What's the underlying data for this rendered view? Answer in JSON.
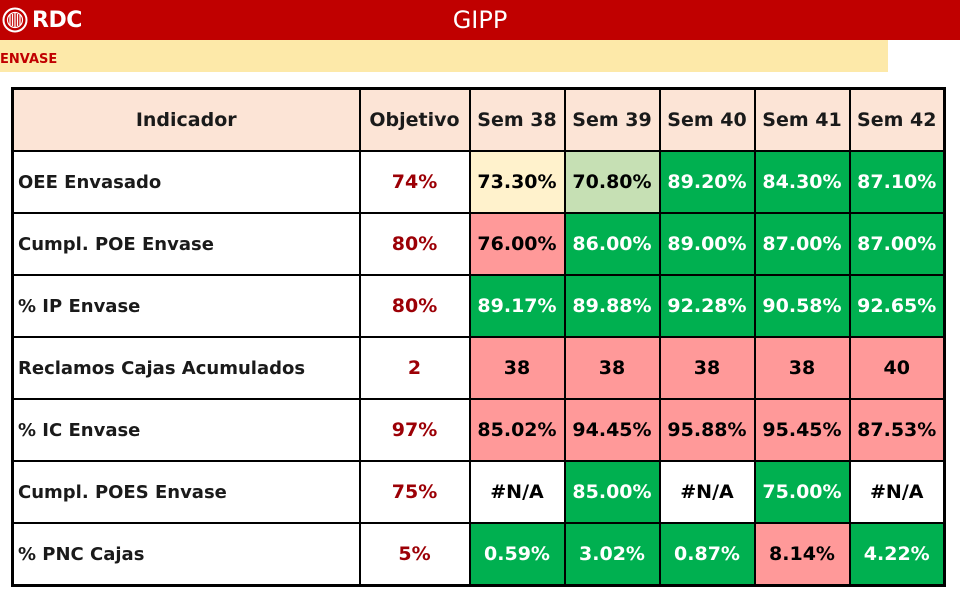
{
  "header": {
    "logo_text": "RDC",
    "title": "GIPP"
  },
  "section": {
    "label": "ENVASE"
  },
  "colors": {
    "header_red": "#c00000",
    "section_yellow": "#fde9a9",
    "header_row": "#fce4d6",
    "green": "#00b050",
    "light_green": "#c6e0b4",
    "cream": "#fff2cc",
    "red": "#ff9999",
    "objective_text": "#9c0006"
  },
  "table": {
    "columns": [
      "Indicador",
      "Objetivo",
      "Sem 38",
      "Sem 39",
      "Sem 40",
      "Sem 41",
      "Sem 42"
    ],
    "rows": [
      {
        "indicator": "OEE Envasado",
        "objective": "74%",
        "values": [
          "73.30%",
          "70.80%",
          "89.20%",
          "84.30%",
          "87.10%"
        ],
        "status": [
          "cream",
          "lgreen",
          "green",
          "green",
          "green"
        ]
      },
      {
        "indicator": "Cumpl. POE Envase",
        "objective": "80%",
        "values": [
          "76.00%",
          "86.00%",
          "89.00%",
          "87.00%",
          "87.00%"
        ],
        "status": [
          "red",
          "green",
          "green",
          "green",
          "green"
        ]
      },
      {
        "indicator": "% IP Envase",
        "objective": "80%",
        "values": [
          "89.17%",
          "89.88%",
          "92.28%",
          "90.58%",
          "92.65%"
        ],
        "status": [
          "green",
          "green",
          "green",
          "green",
          "green"
        ]
      },
      {
        "indicator": "Reclamos Cajas Acumulados",
        "objective": "2",
        "values": [
          "38",
          "38",
          "38",
          "38",
          "40"
        ],
        "status": [
          "red",
          "red",
          "red",
          "red",
          "red"
        ]
      },
      {
        "indicator": "% IC Envase",
        "objective": "97%",
        "values": [
          "85.02%",
          "94.45%",
          "95.88%",
          "95.45%",
          "87.53%"
        ],
        "status": [
          "red",
          "red",
          "red",
          "red",
          "red"
        ]
      },
      {
        "indicator": "Cumpl. POES Envase",
        "objective": "75%",
        "values": [
          "#N/A",
          "85.00%",
          "#N/A",
          "75.00%",
          "#N/A"
        ],
        "status": [
          "white",
          "green",
          "white",
          "green",
          "white"
        ]
      },
      {
        "indicator": "% PNC Cajas",
        "objective": "5%",
        "values": [
          "0.59%",
          "3.02%",
          "0.87%",
          "8.14%",
          "4.22%"
        ],
        "status": [
          "green",
          "green",
          "green",
          "red",
          "green"
        ]
      }
    ]
  }
}
